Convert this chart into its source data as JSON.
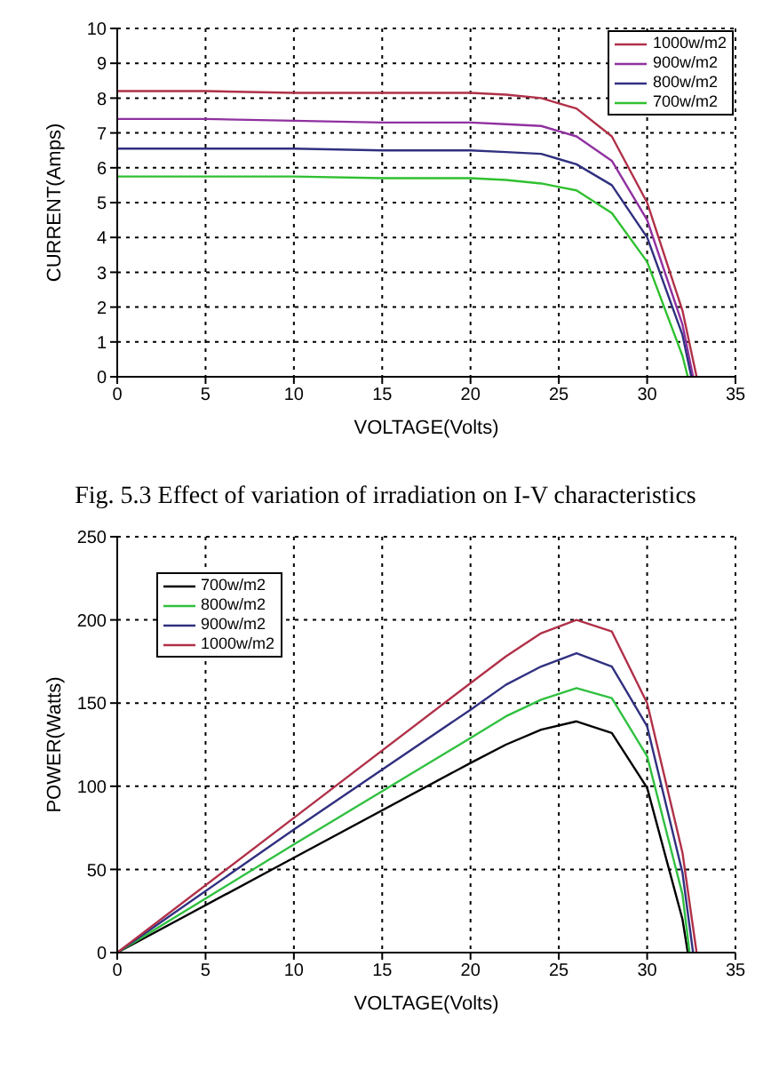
{
  "chart_data": [
    {
      "type": "line",
      "xlabel": "VOLTAGE(Volts)",
      "ylabel": "CURRENT(Amps)",
      "xlim": [
        0,
        35
      ],
      "xticks": [
        0,
        5,
        10,
        15,
        20,
        25,
        30,
        35
      ],
      "ylim": [
        0,
        10
      ],
      "yticks": [
        0,
        1,
        2,
        3,
        4,
        5,
        6,
        7,
        8,
        9,
        10
      ],
      "grid": true,
      "legend": "top right",
      "annotations": [
        "Fig. 5.3 Effect of variation of irradiation on I-V characteristics"
      ],
      "series": [
        {
          "name": "1000w/m2",
          "color": "#b03048",
          "x": [
            0,
            5,
            10,
            15,
            20,
            22,
            24,
            25,
            26,
            28,
            30,
            32,
            32.8
          ],
          "values": [
            8.2,
            8.2,
            8.15,
            8.15,
            8.15,
            8.1,
            8.0,
            7.85,
            7.7,
            6.9,
            5.0,
            1.9,
            0
          ]
        },
        {
          "name": "900w/m2",
          "color": "#9030a0",
          "x": [
            0,
            5,
            10,
            15,
            20,
            22,
            24,
            25,
            26,
            28,
            30,
            32,
            32.6
          ],
          "values": [
            7.4,
            7.4,
            7.35,
            7.3,
            7.3,
            7.25,
            7.2,
            7.05,
            6.9,
            6.2,
            4.5,
            1.5,
            0
          ]
        },
        {
          "name": "800w/m2",
          "color": "#303080",
          "x": [
            0,
            5,
            10,
            15,
            20,
            22,
            24,
            25,
            26,
            28,
            30,
            32,
            32.5
          ],
          "values": [
            6.55,
            6.55,
            6.55,
            6.5,
            6.5,
            6.45,
            6.4,
            6.25,
            6.1,
            5.5,
            4.0,
            1.2,
            0
          ]
        },
        {
          "name": "700w/m2",
          "color": "#30c030",
          "x": [
            0,
            5,
            10,
            15,
            20,
            22,
            24,
            25,
            26,
            28,
            30,
            32,
            32.3
          ],
          "values": [
            5.75,
            5.75,
            5.75,
            5.7,
            5.7,
            5.65,
            5.55,
            5.45,
            5.35,
            4.7,
            3.3,
            0.6,
            0
          ]
        }
      ]
    },
    {
      "type": "line",
      "xlabel": "VOLTAGE(Volts)",
      "ylabel": "POWER(Watts)",
      "xlim": [
        0,
        35
      ],
      "xticks": [
        0,
        5,
        10,
        15,
        20,
        25,
        30,
        35
      ],
      "ylim": [
        0,
        250
      ],
      "yticks": [
        0,
        50,
        100,
        150,
        200,
        250
      ],
      "grid": true,
      "legend": "top left",
      "series": [
        {
          "name": "700w/m2",
          "color": "#000000",
          "x": [
            0,
            10,
            20,
            22,
            24,
            26,
            28,
            30,
            32,
            32.3
          ],
          "values": [
            0,
            57,
            114,
            125,
            134,
            139,
            132,
            99,
            20,
            0
          ]
        },
        {
          "name": "800w/m2",
          "color": "#30c040",
          "x": [
            0,
            10,
            20,
            22,
            24,
            26,
            28,
            30,
            32,
            32.4
          ],
          "values": [
            0,
            65,
            129,
            142,
            152,
            159,
            153,
            118,
            35,
            0
          ]
        },
        {
          "name": "900w/m2",
          "color": "#303080",
          "x": [
            0,
            10,
            20,
            22,
            24,
            26,
            28,
            30,
            32,
            32.6
          ],
          "values": [
            0,
            74,
            146,
            161,
            172,
            180,
            172,
            136,
            48,
            0
          ]
        },
        {
          "name": "1000w/m2",
          "color": "#b03048",
          "x": [
            0,
            10,
            20,
            22,
            24,
            26,
            28,
            30,
            32,
            32.8
          ],
          "values": [
            0,
            81,
            162,
            178,
            192,
            200,
            193,
            150,
            60,
            0
          ]
        }
      ]
    }
  ]
}
